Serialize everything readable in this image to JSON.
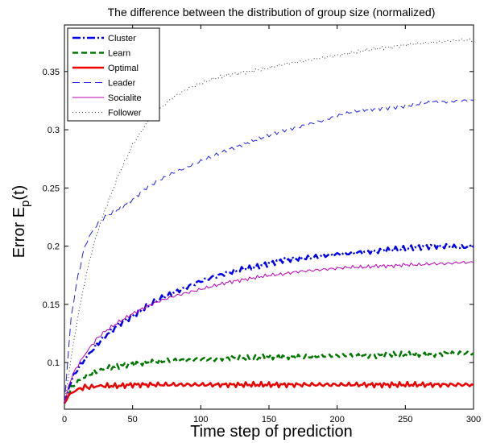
{
  "chart_data": {
    "type": "line",
    "title": "The difference between the distribution of group size (normalized)",
    "xlabel": "Time step of prediction",
    "ylabel": "Error E",
    "ylabel_subscript": "p",
    "ylabel_suffix": "(t)",
    "xlim": [
      0,
      300
    ],
    "ylim": [
      0.06,
      0.39
    ],
    "xticks": [
      0,
      50,
      100,
      150,
      200,
      250,
      300
    ],
    "yticks": [
      0.1,
      0.15,
      0.2,
      0.25,
      0.3,
      0.35
    ],
    "ytick_labels": [
      "0.1",
      "0.15",
      "0.2",
      "0.25",
      "0.3",
      "0.35"
    ],
    "grid": false,
    "legend_position": "top-left",
    "x": [
      0,
      5,
      10,
      15,
      20,
      25,
      30,
      40,
      50,
      60,
      70,
      80,
      90,
      100,
      110,
      120,
      130,
      140,
      150,
      160,
      170,
      180,
      190,
      200,
      210,
      220,
      230,
      240,
      250,
      260,
      270,
      280,
      290,
      300
    ],
    "series": [
      {
        "name": "Cluster",
        "color": "#0000ee",
        "dash": "10,3,2,3",
        "width": 2.5,
        "values": [
          0.065,
          0.085,
          0.095,
          0.103,
          0.11,
          0.117,
          0.123,
          0.133,
          0.14,
          0.148,
          0.155,
          0.16,
          0.165,
          0.17,
          0.174,
          0.177,
          0.18,
          0.182,
          0.185,
          0.188,
          0.189,
          0.19,
          0.192,
          0.193,
          0.194,
          0.195,
          0.196,
          0.197,
          0.198,
          0.199,
          0.2,
          0.2,
          0.199,
          0.2
        ]
      },
      {
        "name": "Learn",
        "color": "#007700",
        "dash": "7,4",
        "width": 2.5,
        "values": [
          0.065,
          0.078,
          0.084,
          0.088,
          0.091,
          0.093,
          0.095,
          0.097,
          0.099,
          0.1,
          0.101,
          0.102,
          0.102,
          0.103,
          0.103,
          0.104,
          0.104,
          0.104,
          0.105,
          0.105,
          0.105,
          0.105,
          0.106,
          0.106,
          0.106,
          0.106,
          0.106,
          0.107,
          0.107,
          0.107,
          0.107,
          0.108,
          0.108,
          0.108
        ]
      },
      {
        "name": "Optimal",
        "color": "#ee0000",
        "dash": "",
        "width": 2.5,
        "values": [
          0.065,
          0.074,
          0.077,
          0.079,
          0.079,
          0.08,
          0.08,
          0.08,
          0.081,
          0.081,
          0.081,
          0.081,
          0.081,
          0.081,
          0.081,
          0.081,
          0.081,
          0.081,
          0.081,
          0.081,
          0.081,
          0.081,
          0.081,
          0.081,
          0.081,
          0.081,
          0.081,
          0.081,
          0.081,
          0.081,
          0.081,
          0.081,
          0.081,
          0.081
        ]
      },
      {
        "name": "Leader",
        "color": "#2222ee",
        "dash": "9,5",
        "width": 1,
        "values": [
          0.065,
          0.14,
          0.175,
          0.2,
          0.212,
          0.22,
          0.225,
          0.232,
          0.24,
          0.25,
          0.257,
          0.263,
          0.268,
          0.273,
          0.278,
          0.283,
          0.287,
          0.291,
          0.295,
          0.299,
          0.302,
          0.305,
          0.308,
          0.312,
          0.315,
          0.317,
          0.318,
          0.319,
          0.32,
          0.322,
          0.324,
          0.324,
          0.325,
          0.325
        ]
      },
      {
        "name": "Socialite",
        "color": "#bb00bb",
        "dash": "",
        "width": 1,
        "values": [
          0.065,
          0.087,
          0.098,
          0.107,
          0.115,
          0.122,
          0.127,
          0.135,
          0.142,
          0.148,
          0.153,
          0.157,
          0.16,
          0.163,
          0.166,
          0.169,
          0.171,
          0.173,
          0.175,
          0.176,
          0.178,
          0.179,
          0.18,
          0.181,
          0.182,
          0.182,
          0.183,
          0.183,
          0.184,
          0.184,
          0.185,
          0.185,
          0.186,
          0.186
        ]
      },
      {
        "name": "Follower",
        "color": "#333333",
        "dash": "1,3",
        "width": 1,
        "values": [
          0.065,
          0.105,
          0.14,
          0.17,
          0.195,
          0.215,
          0.232,
          0.262,
          0.287,
          0.305,
          0.318,
          0.328,
          0.335,
          0.34,
          0.344,
          0.347,
          0.349,
          0.351,
          0.353,
          0.356,
          0.358,
          0.36,
          0.362,
          0.364,
          0.366,
          0.368,
          0.37,
          0.371,
          0.373,
          0.374,
          0.375,
          0.376,
          0.377,
          0.377
        ]
      }
    ]
  }
}
